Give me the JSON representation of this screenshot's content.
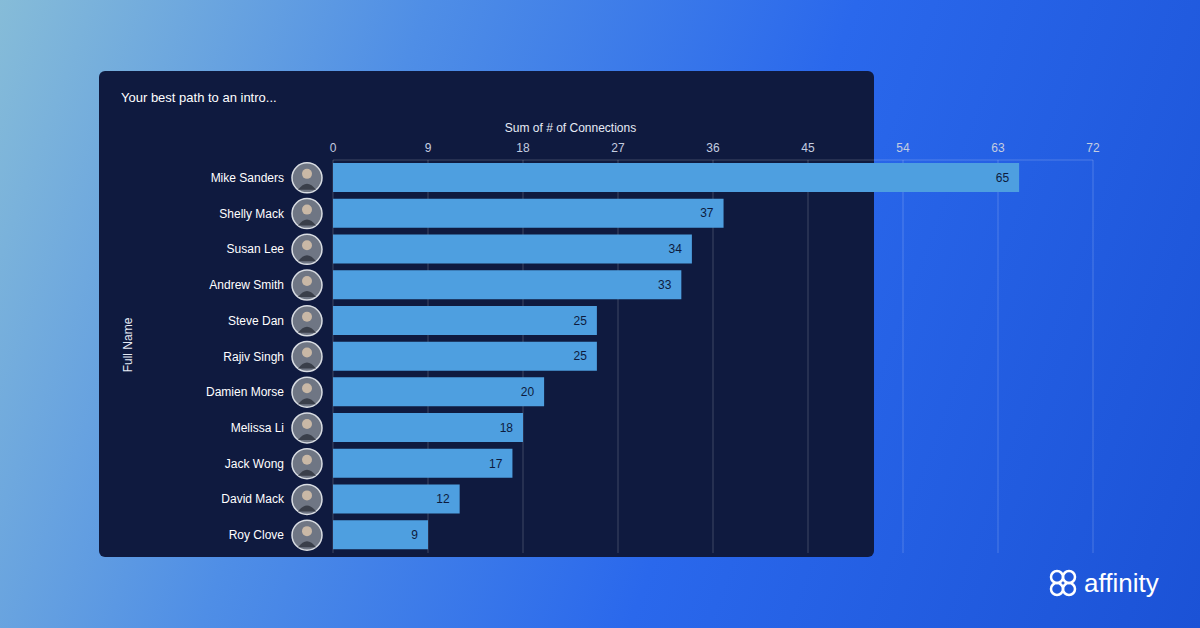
{
  "chart_data": {
    "type": "bar",
    "orientation": "horizontal",
    "title": "Your best path to an intro...",
    "x_label": "Sum of # of Connections",
    "y_label": "Full Name",
    "categories": [
      "Mike Sanders",
      "Shelly Mack",
      "Susan Lee",
      "Andrew Smith",
      "Steve Dan",
      "Rajiv Singh",
      "Damien Morse",
      "Melissa Li",
      "Jack Wong",
      "David Mack",
      "Roy Clove"
    ],
    "values": [
      65,
      37,
      34,
      33,
      25,
      25,
      20,
      18,
      17,
      12,
      9
    ],
    "color": "#4e9fe0",
    "xlim": [
      0,
      72
    ],
    "xticks": [
      0,
      9,
      18,
      27,
      36,
      45,
      54,
      63,
      72
    ],
    "grid": true,
    "data_labels": true
  },
  "brand": "affinity"
}
